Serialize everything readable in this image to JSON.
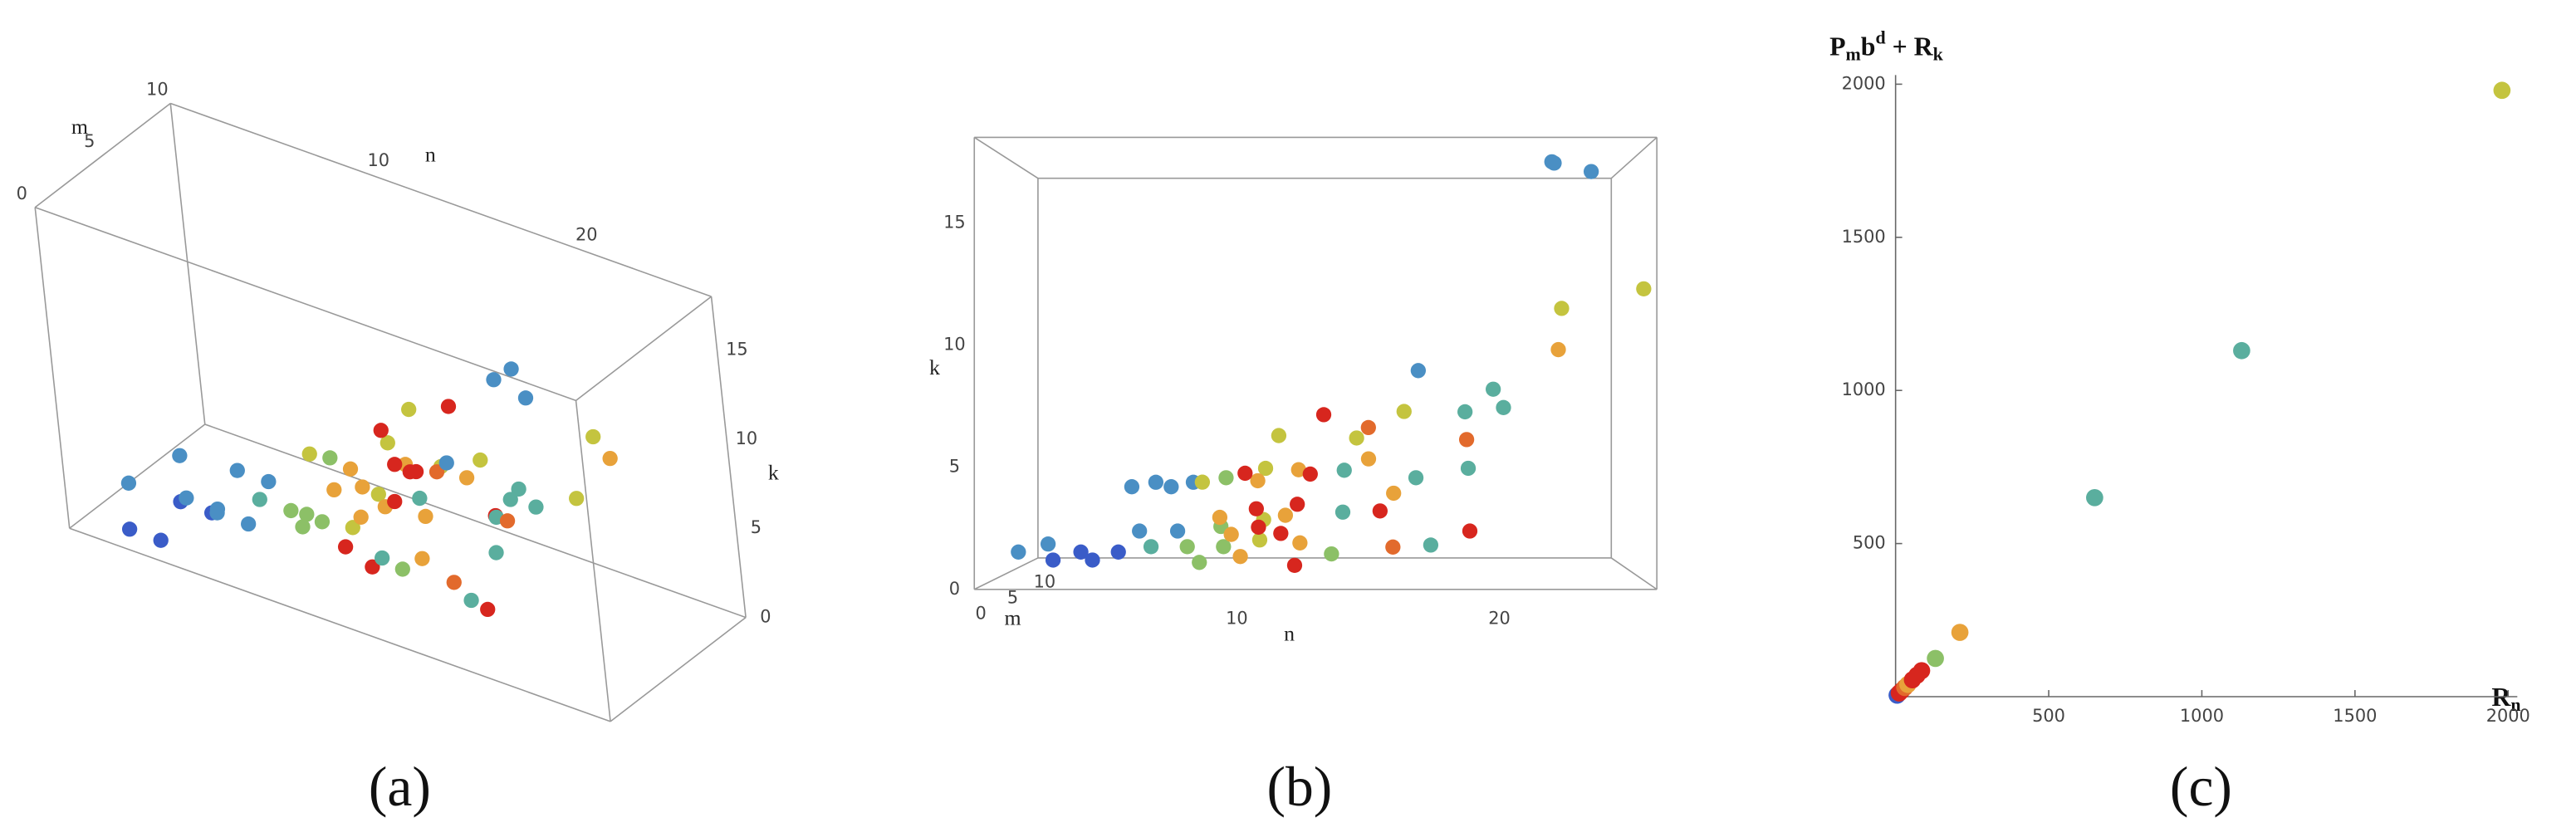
{
  "chart_data": [
    {
      "type": "scatter3d",
      "caption": "(a)",
      "xlabel": "n",
      "ylabel": "k",
      "zlabel": "m",
      "xlim": [
        0,
        26
      ],
      "ylim": [
        0,
        18
      ],
      "zlim": [
        0,
        10
      ],
      "xticks": [
        10,
        20
      ],
      "yticks": [
        0,
        5,
        10,
        15
      ],
      "zticks": [
        0,
        5,
        10
      ],
      "x": [
        1,
        1.5,
        3,
        3.5,
        4.5,
        5,
        6,
        6.5,
        7.5,
        8,
        6,
        7.5,
        6,
        7.5,
        9,
        9,
        9,
        10.5,
        10.5,
        10.5,
        11,
        10.5,
        11.5,
        12,
        12,
        11.5,
        12,
        12.5,
        13,
        12,
        14,
        14,
        13.5,
        14.5,
        15,
        15,
        15.5,
        16,
        16,
        16.5,
        17,
        17,
        17.5,
        19,
        19,
        19,
        19,
        20,
        20.5,
        23,
        23,
        22,
        22.2,
        23.5,
        25.5,
        8,
        8.5,
        9,
        9.5,
        10,
        10,
        8,
        9.5
      ],
      "y": [
        1.2,
        1.2,
        1.2,
        1.2,
        1.2,
        1.2,
        4.2,
        4.2,
        4.2,
        4.2,
        2.2,
        2.2,
        1.2,
        1.2,
        1.2,
        2.2,
        4.2,
        1.5,
        2.2,
        4.5,
        6,
        4.2,
        2.5,
        4.5,
        1,
        2,
        3,
        4.3,
        7,
        0.5,
        3,
        4.6,
        1,
        6,
        5,
        6.5,
        2.5,
        3.8,
        1.3,
        7.2,
        9,
        4.2,
        1.5,
        2.2,
        4.8,
        6,
        7.2,
        8.2,
        7.4,
        11.8,
        10,
        17.5,
        17.6,
        17.1,
        12.3,
        4,
        2.2,
        1.4,
        4.2,
        2.5,
        1.5,
        0.5,
        0.5
      ],
      "z": [
        3,
        6,
        0,
        3,
        0,
        3,
        0,
        3,
        0,
        3,
        2,
        2,
        5,
        5,
        5,
        4,
        6,
        5,
        7,
        8,
        9,
        4,
        6,
        7,
        8,
        3,
        6,
        7,
        9,
        4,
        2,
        5,
        4,
        6,
        7,
        5,
        8,
        2,
        4,
        6,
        3,
        6,
        3,
        2,
        3,
        4,
        5,
        3,
        4,
        5,
        6,
        0,
        1,
        0,
        0,
        6,
        8,
        8,
        9,
        9,
        10,
        5,
        7
      ],
      "colors": [
        "#4a8fc4",
        "#4a8fc4",
        "#3a5cc8",
        "#3a5cc8",
        "#3a5cc8",
        "#3a5cc8",
        "#4a8fc4",
        "#4a8fc4",
        "#4a8fc4",
        "#4a8fc4",
        "#4a8fc4",
        "#4a8fc4",
        "#5aae9e",
        "#8cc067",
        "#8cc067",
        "#8cc067",
        "#8cc067",
        "#c4c43f",
        "#c4c43f",
        "#c4c43f",
        "#c4c43f",
        "#e8a23a",
        "#e8a23a",
        "#e8a23a",
        "#e8a23a",
        "#d7261e",
        "#d7261e",
        "#d7261e",
        "#d7261e",
        "#d7261e",
        "#5aae9e",
        "#5aae9e",
        "#8cc067",
        "#c4c43f",
        "#e8a23a",
        "#e26a2c",
        "#d7261e",
        "#e8a23a",
        "#e26a2c",
        "#c4c43f",
        "#4a8fc4",
        "#5aae9e",
        "#5aae9e",
        "#d7261e",
        "#5aae9e",
        "#e26a2c",
        "#5aae9e",
        "#5aae9e",
        "#5aae9e",
        "#c4c43f",
        "#e8a23a",
        "#4a8fc4",
        "#4a8fc4",
        "#4a8fc4",
        "#c4c43f",
        "#c4c43f",
        "#e8a23a",
        "#e8a23a",
        "#d7261e",
        "#d7261e",
        "#d7261e",
        "#8cc067",
        "#e8a23a"
      ]
    },
    {
      "type": "scatter3d",
      "caption": "(b)",
      "xlabel": "n",
      "ylabel": "k",
      "zlabel": "m",
      "xlim": [
        0,
        26
      ],
      "ylim": [
        0,
        18.5
      ],
      "zlim": [
        0,
        10
      ],
      "xticks": [
        10,
        20
      ],
      "yticks": [
        0,
        5,
        10,
        15
      ],
      "zticks": [
        0,
        5,
        10
      ],
      "x": [
        1,
        1.5,
        3,
        3.5,
        4.5,
        5,
        6,
        6.5,
        7.5,
        8,
        6,
        7.5,
        6,
        7.5,
        9,
        9,
        9,
        10.5,
        10.5,
        10.5,
        11,
        10.5,
        11.5,
        12,
        12,
        11.5,
        12,
        12.5,
        13,
        12,
        14,
        14,
        13.5,
        14.5,
        15,
        15,
        15.5,
        16,
        16,
        16.5,
        17,
        17,
        17.5,
        19,
        19,
        19,
        19,
        20,
        20.5,
        23,
        23,
        22,
        22.2,
        23.5,
        25.5,
        8,
        8.5,
        9,
        9.5,
        10,
        10,
        8,
        9.5
      ],
      "y": [
        1.2,
        1.2,
        1.2,
        1.2,
        1.2,
        1.2,
        4.2,
        4.2,
        4.2,
        4.2,
        2.2,
        2.2,
        1.2,
        1.2,
        1.2,
        2.2,
        4.2,
        1.5,
        2.2,
        4.5,
        6,
        4.2,
        2.5,
        4.5,
        1,
        2,
        3,
        4.3,
        7,
        0.5,
        3,
        4.6,
        1,
        6,
        5,
        6.5,
        2.5,
        3.8,
        1.3,
        7.2,
        9,
        4.2,
        1.5,
        2.2,
        4.8,
        6,
        7.2,
        8.2,
        7.4,
        11.8,
        10,
        17.5,
        17.6,
        17.1,
        12.3,
        4,
        2.2,
        1.4,
        4.2,
        2.5,
        1.5,
        0.5,
        0.5
      ],
      "z": [
        3,
        6,
        0,
        3,
        0,
        3,
        0,
        3,
        0,
        3,
        2,
        2,
        5,
        5,
        5,
        4,
        6,
        5,
        7,
        8,
        9,
        4,
        6,
        7,
        8,
        3,
        6,
        7,
        9,
        4,
        2,
        5,
        4,
        6,
        7,
        5,
        8,
        2,
        4,
        6,
        3,
        6,
        3,
        2,
        3,
        4,
        5,
        3,
        4,
        5,
        6,
        0,
        1,
        0,
        0,
        6,
        8,
        8,
        9,
        9,
        10,
        5,
        7
      ],
      "colors": [
        "#4a8fc4",
        "#4a8fc4",
        "#3a5cc8",
        "#3a5cc8",
        "#3a5cc8",
        "#3a5cc8",
        "#4a8fc4",
        "#4a8fc4",
        "#4a8fc4",
        "#4a8fc4",
        "#4a8fc4",
        "#4a8fc4",
        "#5aae9e",
        "#8cc067",
        "#8cc067",
        "#8cc067",
        "#8cc067",
        "#c4c43f",
        "#c4c43f",
        "#c4c43f",
        "#c4c43f",
        "#e8a23a",
        "#e8a23a",
        "#e8a23a",
        "#e8a23a",
        "#d7261e",
        "#d7261e",
        "#d7261e",
        "#d7261e",
        "#d7261e",
        "#5aae9e",
        "#5aae9e",
        "#8cc067",
        "#c4c43f",
        "#e8a23a",
        "#e26a2c",
        "#d7261e",
        "#e8a23a",
        "#e26a2c",
        "#c4c43f",
        "#4a8fc4",
        "#5aae9e",
        "#5aae9e",
        "#d7261e",
        "#5aae9e",
        "#e26a2c",
        "#5aae9e",
        "#5aae9e",
        "#5aae9e",
        "#c4c43f",
        "#e8a23a",
        "#4a8fc4",
        "#4a8fc4",
        "#4a8fc4",
        "#c4c43f",
        "#c4c43f",
        "#e8a23a",
        "#e8a23a",
        "#d7261e",
        "#d7261e",
        "#d7261e",
        "#8cc067",
        "#e8a23a"
      ]
    },
    {
      "type": "scatter",
      "caption": "(c)",
      "xlabel": [
        "R",
        "n"
      ],
      "ylabel": [
        "P",
        "m",
        "b",
        "d",
        "+ R",
        "k"
      ],
      "xlim": [
        0,
        2030
      ],
      "ylim": [
        0,
        2030
      ],
      "xticks": [
        500,
        1000,
        1500,
        2000
      ],
      "yticks": [
        500,
        1000,
        1500,
        2000
      ],
      "x": [
        5,
        12,
        20,
        30,
        40,
        55,
        70,
        85,
        130,
        210,
        650,
        1130,
        1980
      ],
      "y": [
        5,
        12,
        20,
        30,
        40,
        55,
        70,
        85,
        125,
        210,
        650,
        1130,
        1980
      ],
      "colors": [
        "#3a5cc8",
        "#d7261e",
        "#d7261e",
        "#e26a2c",
        "#e8a23a",
        "#d7261e",
        "#d7261e",
        "#d7261e",
        "#8cc067",
        "#e8a23a",
        "#5aae9e",
        "#5aae9e",
        "#c4c43f"
      ]
    }
  ]
}
